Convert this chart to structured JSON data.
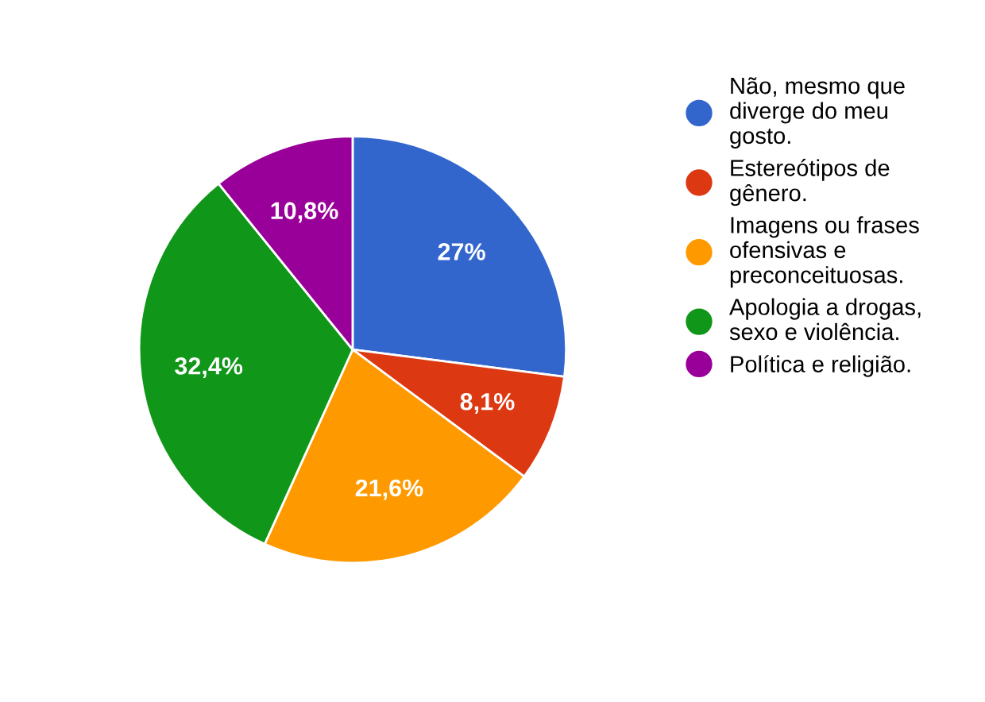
{
  "chart_data": {
    "type": "pie",
    "categories": [
      "Não, mesmo que\ndiverge do meu\ngosto.",
      "Estereótipos de\ngênero.",
      "Imagens ou frases\nofensivas e\npreconceituosas.",
      "Apologia a drogas,\nsexo e violência.",
      "Política e religião."
    ],
    "values": [
      27,
      8.1,
      21.6,
      32.4,
      10.8
    ],
    "value_labels": [
      "27%",
      "8,1%",
      "21,6%",
      "32,4%",
      "10,8%"
    ],
    "colors": [
      "#3366cc",
      "#dc3912",
      "#ff9900",
      "#109618",
      "#990099"
    ],
    "legend": "right"
  }
}
